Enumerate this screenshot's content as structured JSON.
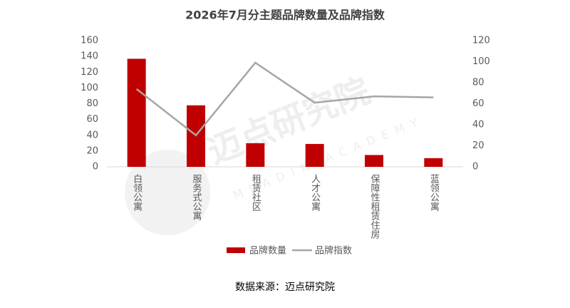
{
  "chart_data": {
    "type": "bar_line",
    "title": "2026年7月分主题品牌数量及品牌指数",
    "categories": [
      "白领公寓",
      "服务式公寓",
      "租赁社区",
      "人才公寓",
      "保障性租赁住房",
      "蓝领公寓"
    ],
    "series": [
      {
        "name": "品牌数量",
        "type": "bar",
        "color": "#c00000",
        "values": [
          137,
          78,
          30,
          29,
          15,
          11
        ]
      },
      {
        "name": "品牌指数",
        "type": "line",
        "axis": "y2",
        "color": "#a6a6a6",
        "values": [
          74,
          30,
          99,
          61,
          67,
          66
        ]
      }
    ],
    "ylim": [
      0,
      160
    ],
    "yticks": [
      0,
      20,
      40,
      60,
      80,
      100,
      120,
      140,
      160
    ],
    "y2lim": [
      0,
      120
    ],
    "y2ticks": [
      0,
      20,
      40,
      60,
      80,
      100,
      120
    ],
    "grid": false,
    "legend": "bottom",
    "source": "数据来源：迈点研究院",
    "watermark": {
      "title": "迈点研究院",
      "subtitle": "MEADIN ACADEMY"
    }
  }
}
